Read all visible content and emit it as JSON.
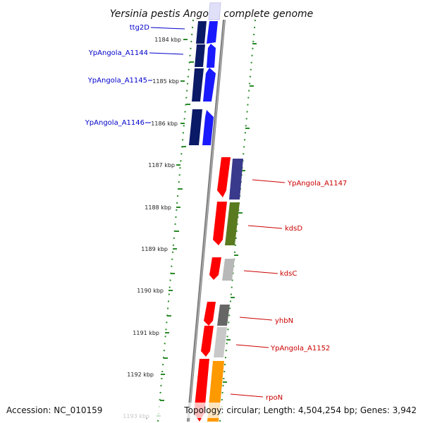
{
  "title": "Yersinia pestis Angola, complete genome",
  "footer": {
    "accession": "Accession: NC_010159",
    "topology": "Topology: circular; Length: 4,504,254 bp; Genes: 3,942"
  },
  "ruler_ticks": [
    "1184 kbp",
    "1185 kbp",
    "1186 kbp",
    "1187 kbp",
    "1188 kbp",
    "1189 kbp",
    "1190 kbp",
    "1191 kbp",
    "1192 kbp",
    "1193 kbp"
  ],
  "colors": {
    "forward_gene": "#1a1aff",
    "forward_cds": "#0a1a66",
    "reverse_gene": "#ff0000",
    "forward_label": "#0000cc",
    "reverse_label": "#cc0000",
    "backbone": "#808080",
    "tick_green": "#2a8a2a"
  },
  "genes": [
    {
      "label": "ttg2D",
      "strand": "forward"
    },
    {
      "label": "YpAngola_A1144",
      "strand": "forward"
    },
    {
      "label": "YpAngola_A1145",
      "strand": "forward"
    },
    {
      "label": "YpAngola_A1146",
      "strand": "forward"
    },
    {
      "label": "YpAngola_A1147",
      "strand": "reverse"
    },
    {
      "label": "kdsD",
      "strand": "reverse"
    },
    {
      "label": "kdsC",
      "strand": "reverse"
    },
    {
      "label": "yhbN",
      "strand": "reverse"
    },
    {
      "label": "YpAngola_A1152",
      "strand": "reverse"
    },
    {
      "label": "rpoN",
      "strand": "reverse"
    }
  ]
}
